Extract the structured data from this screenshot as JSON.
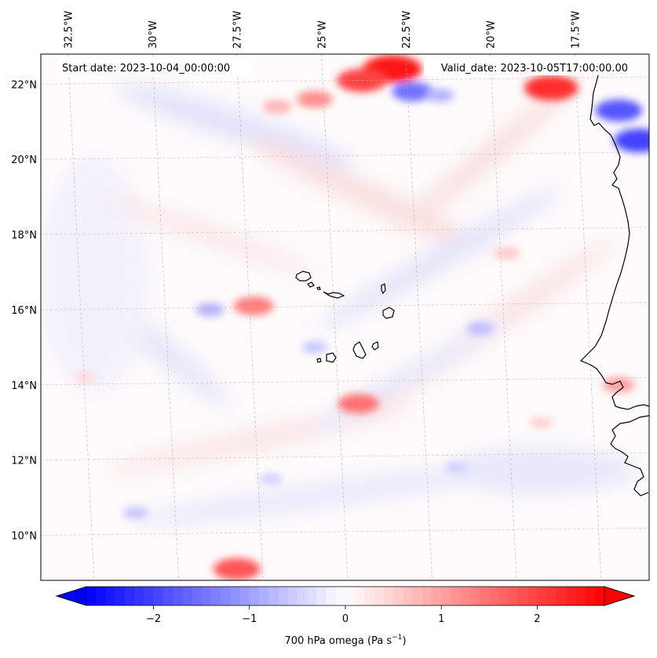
{
  "map": {
    "start_date_label": "Start date: 2023-10-04_00:00:00",
    "valid_date_label": "Valid_date: 2023-10-05T17:00:00.00",
    "extent": {
      "lon_min": -33.3,
      "lon_max": -15.3,
      "lat_min": 8.8,
      "lat_max": 22.8
    },
    "lon_ticks": [
      {
        "value": -32.5,
        "label": "32.5°W"
      },
      {
        "value": -30,
        "label": "30°W"
      },
      {
        "value": -27.5,
        "label": "27.5°W"
      },
      {
        "value": -25,
        "label": "25°W"
      },
      {
        "value": -22.5,
        "label": "22.5°W"
      },
      {
        "value": -20,
        "label": "20°W"
      },
      {
        "value": -17.5,
        "label": "17.5°W"
      }
    ],
    "lat_ticks": [
      {
        "value": 22,
        "label": "22°N"
      },
      {
        "value": 20,
        "label": "20°N"
      },
      {
        "value": 18,
        "label": "18°N"
      },
      {
        "value": 16,
        "label": "16°N"
      },
      {
        "value": 14,
        "label": "14°N"
      },
      {
        "value": 12,
        "label": "12°N"
      },
      {
        "value": 10,
        "label": "10°N"
      }
    ],
    "field_anomalies": [
      {
        "lon": -22.9,
        "lat": 22.4,
        "value": 2.5
      },
      {
        "lon": -23.8,
        "lat": 22.1,
        "value": 2.0
      },
      {
        "lon": -25.2,
        "lat": 21.6,
        "value": 1.2
      },
      {
        "lon": -26.3,
        "lat": 21.4,
        "value": 0.8
      },
      {
        "lon": -22.3,
        "lat": 21.8,
        "value": -1.5
      },
      {
        "lon": -21.5,
        "lat": 21.7,
        "value": -0.8
      },
      {
        "lon": -18.2,
        "lat": 21.9,
        "value": 2.2
      },
      {
        "lon": -16.2,
        "lat": 21.3,
        "value": -1.8
      },
      {
        "lon": -15.6,
        "lat": 20.5,
        "value": -2.0
      },
      {
        "lon": -27.0,
        "lat": 16.1,
        "value": 1.4
      },
      {
        "lon": -28.3,
        "lat": 16.0,
        "value": -0.8
      },
      {
        "lon": -23.9,
        "lat": 13.5,
        "value": 1.5
      },
      {
        "lon": -25.2,
        "lat": 15.0,
        "value": -0.6
      },
      {
        "lon": -20.3,
        "lat": 15.5,
        "value": -0.7
      },
      {
        "lon": -19.5,
        "lat": 17.5,
        "value": 0.6
      },
      {
        "lon": -27.5,
        "lat": 9.1,
        "value": 1.8
      },
      {
        "lon": -30.5,
        "lat": 10.6,
        "value": -0.6
      },
      {
        "lon": -26.5,
        "lat": 11.5,
        "value": -0.5
      },
      {
        "lon": -16.2,
        "lat": 14.0,
        "value": 1.0
      },
      {
        "lon": -18.5,
        "lat": 13.0,
        "value": 0.5
      },
      {
        "lon": -21.0,
        "lat": 11.8,
        "value": -0.5
      },
      {
        "lon": -32.0,
        "lat": 14.2,
        "value": 0.4
      }
    ]
  },
  "colorbar": {
    "label_main": "700 hPa omega (Pa s",
    "label_exp": "−1",
    "label_close": ")",
    "vmin": -2.7,
    "vmax": 2.7,
    "ticks": [
      {
        "value": -2,
        "label": "−2"
      },
      {
        "value": -1,
        "label": "−1"
      },
      {
        "value": 0,
        "label": "0"
      },
      {
        "value": 1,
        "label": "1"
      },
      {
        "value": 2,
        "label": "2"
      }
    ],
    "color_low": "#0000ff",
    "color_mid": "#ffffff",
    "color_high": "#ff0000"
  }
}
